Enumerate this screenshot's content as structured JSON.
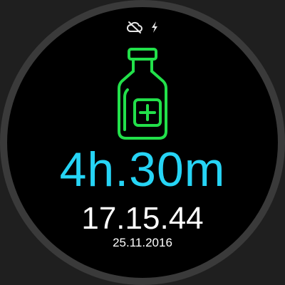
{
  "status_icons": [
    "cloud-off-icon",
    "charging-bolt-icon"
  ],
  "main_icon": "medicine-bottle-icon",
  "countdown": "4h.30m",
  "time": "17.15.44",
  "date": "25.11.2016",
  "colors": {
    "accent_cyan": "#26d4f5",
    "icon_green": "#22e04a",
    "text_white": "#ffffff",
    "face_background": "#000000",
    "bezel": "#3a3a3a"
  }
}
